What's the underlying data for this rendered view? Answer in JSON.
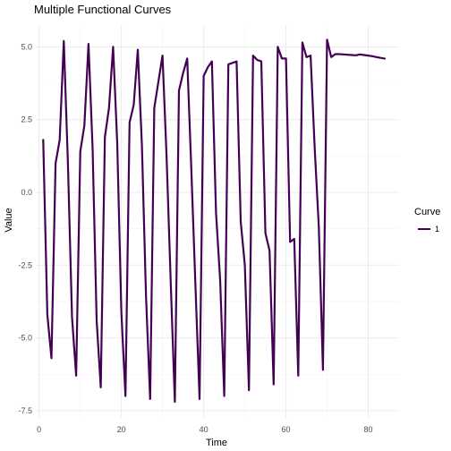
{
  "chart_data": {
    "type": "line",
    "title": "Multiple Functional Curves",
    "xlabel": "Time",
    "ylabel": "Value",
    "xlim": [
      -0.8,
      87.5
    ],
    "ylim": [
      -7.75,
      5.75
    ],
    "x_ticks": [
      0,
      20,
      40,
      60,
      80
    ],
    "x_tick_labels": [
      "0",
      "20",
      "40",
      "60",
      "80"
    ],
    "y_ticks": [
      -7.5,
      -5.0,
      -2.5,
      0.0,
      2.5,
      5.0
    ],
    "y_tick_labels": [
      "-7.5",
      "-5.0",
      "-2.5",
      "0.0",
      "2.5",
      "5.0"
    ],
    "grid": true,
    "legend": {
      "title": "Curve",
      "position": "right"
    },
    "series": [
      {
        "name": "1",
        "color": "#440154",
        "x": [
          1,
          2,
          3,
          4,
          5,
          6,
          7,
          8,
          9,
          10,
          11,
          12,
          13,
          14,
          15,
          16,
          17,
          18,
          19,
          20,
          21,
          22,
          23,
          24,
          25,
          26,
          27,
          28,
          29,
          30,
          31,
          32,
          33,
          34,
          35,
          36,
          37,
          38,
          39,
          40,
          41,
          42,
          43,
          44,
          45,
          46,
          47,
          48,
          49,
          50,
          51,
          52,
          53,
          54,
          55,
          56,
          57,
          58,
          59,
          60,
          61,
          62,
          63,
          64,
          65,
          66,
          67,
          68,
          69,
          70,
          71,
          72,
          73,
          74,
          75,
          76,
          77,
          78,
          79,
          80,
          81,
          82,
          83,
          84
        ],
        "values": [
          1.8,
          -4.2,
          -5.7,
          1.0,
          1.8,
          5.2,
          1.0,
          -4.3,
          -6.3,
          1.4,
          2.3,
          5.1,
          1.5,
          -4.4,
          -6.7,
          1.9,
          2.9,
          5.0,
          1.7,
          -4.1,
          -7.0,
          2.4,
          3.0,
          4.9,
          1.6,
          -3.6,
          -7.1,
          2.9,
          3.8,
          4.7,
          1.2,
          -3.1,
          -7.2,
          3.5,
          4.1,
          4.6,
          0.8,
          -3.2,
          -7.1,
          4.0,
          4.3,
          4.5,
          -0.7,
          -3.0,
          -7.0,
          4.4,
          4.45,
          4.5,
          -1.0,
          -2.5,
          -6.8,
          4.7,
          4.55,
          4.5,
          -1.4,
          -2.0,
          -6.6,
          5.0,
          4.6,
          4.6,
          -1.7,
          -1.6,
          -6.3,
          5.15,
          4.65,
          4.7,
          1.5,
          -1.2,
          -6.1,
          5.25,
          4.65,
          4.75,
          4.75,
          4.74,
          4.73,
          4.72,
          4.71,
          4.74,
          4.72,
          4.7,
          4.68,
          4.65,
          4.62,
          4.6
        ]
      }
    ]
  }
}
